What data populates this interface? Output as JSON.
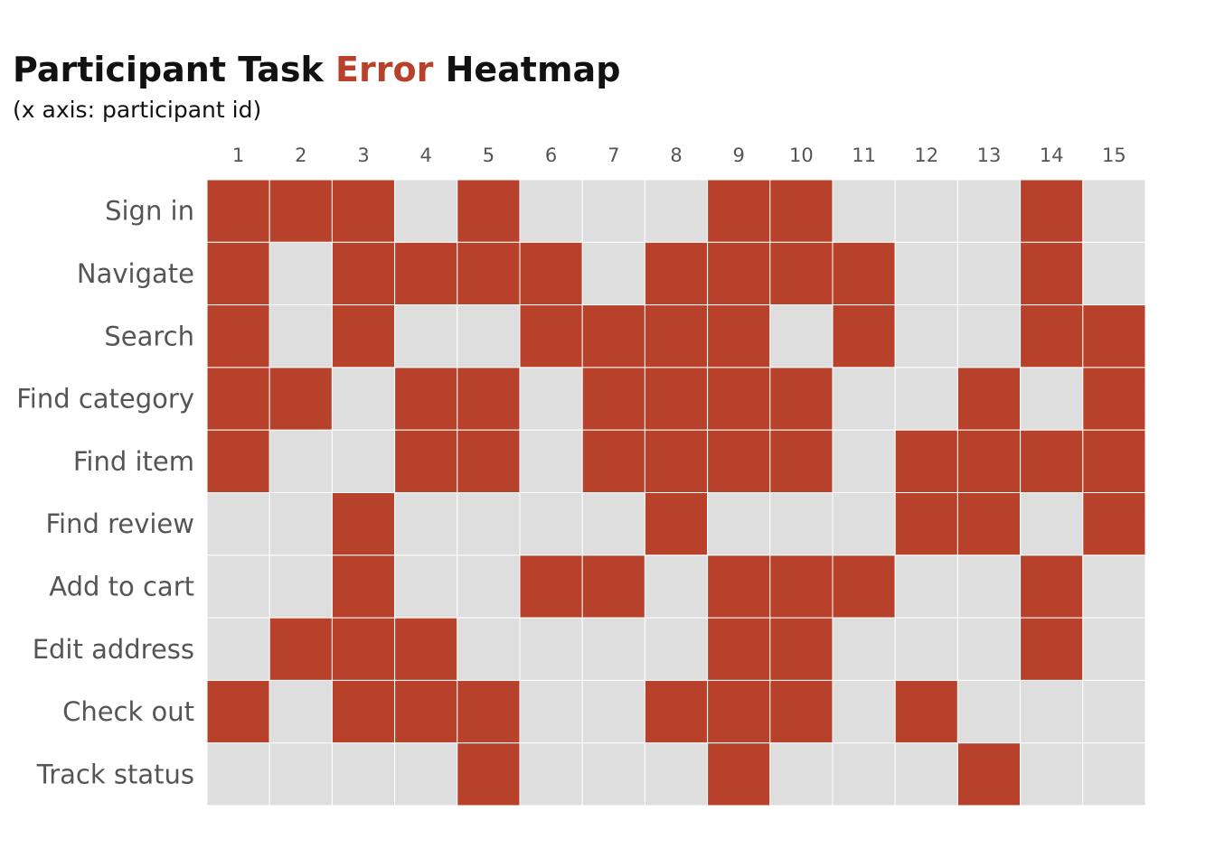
{
  "chart_title": {
    "part1": "Participant Task",
    "highlight": "Error",
    "part2": "Heatmap"
  },
  "chart_subtitle": "(x axis: participant id)",
  "colors": {
    "error": "#b8412b",
    "no_error": "#dedede",
    "grid_line": "#ffffff",
    "label_text": "#555555",
    "title_text": "#111111"
  },
  "chart_data": {
    "type": "heatmap",
    "x_categories": [
      "1",
      "2",
      "3",
      "4",
      "5",
      "6",
      "7",
      "8",
      "9",
      "10",
      "11",
      "12",
      "13",
      "14",
      "15"
    ],
    "y_categories": [
      "Sign in",
      "Navigate",
      "Search",
      "Find category",
      "Find item",
      "Find review",
      "Add to cart",
      "Edit address",
      "Check out",
      "Track status"
    ],
    "x_axis_position": "top",
    "legend": "none",
    "values": [
      [
        1,
        1,
        1,
        0,
        1,
        0,
        0,
        0,
        1,
        1,
        0,
        0,
        0,
        1,
        0
      ],
      [
        1,
        0,
        1,
        1,
        1,
        1,
        0,
        1,
        1,
        1,
        1,
        0,
        0,
        1,
        0
      ],
      [
        1,
        0,
        1,
        0,
        0,
        1,
        1,
        1,
        1,
        0,
        1,
        0,
        0,
        1,
        1
      ],
      [
        1,
        1,
        0,
        1,
        1,
        0,
        1,
        1,
        1,
        1,
        0,
        0,
        1,
        0,
        1
      ],
      [
        1,
        0,
        0,
        1,
        1,
        0,
        1,
        1,
        1,
        1,
        0,
        1,
        1,
        1,
        1
      ],
      [
        0,
        0,
        1,
        0,
        0,
        0,
        0,
        1,
        0,
        0,
        0,
        1,
        1,
        0,
        1
      ],
      [
        0,
        0,
        1,
        0,
        0,
        1,
        1,
        0,
        1,
        1,
        1,
        0,
        0,
        1,
        0
      ],
      [
        0,
        1,
        1,
        1,
        0,
        0,
        0,
        0,
        1,
        1,
        0,
        0,
        0,
        1,
        0
      ],
      [
        1,
        0,
        1,
        1,
        1,
        0,
        0,
        1,
        1,
        1,
        0,
        1,
        0,
        0,
        0
      ],
      [
        0,
        0,
        0,
        0,
        1,
        0,
        0,
        0,
        1,
        0,
        0,
        0,
        1,
        0,
        0
      ]
    ]
  }
}
